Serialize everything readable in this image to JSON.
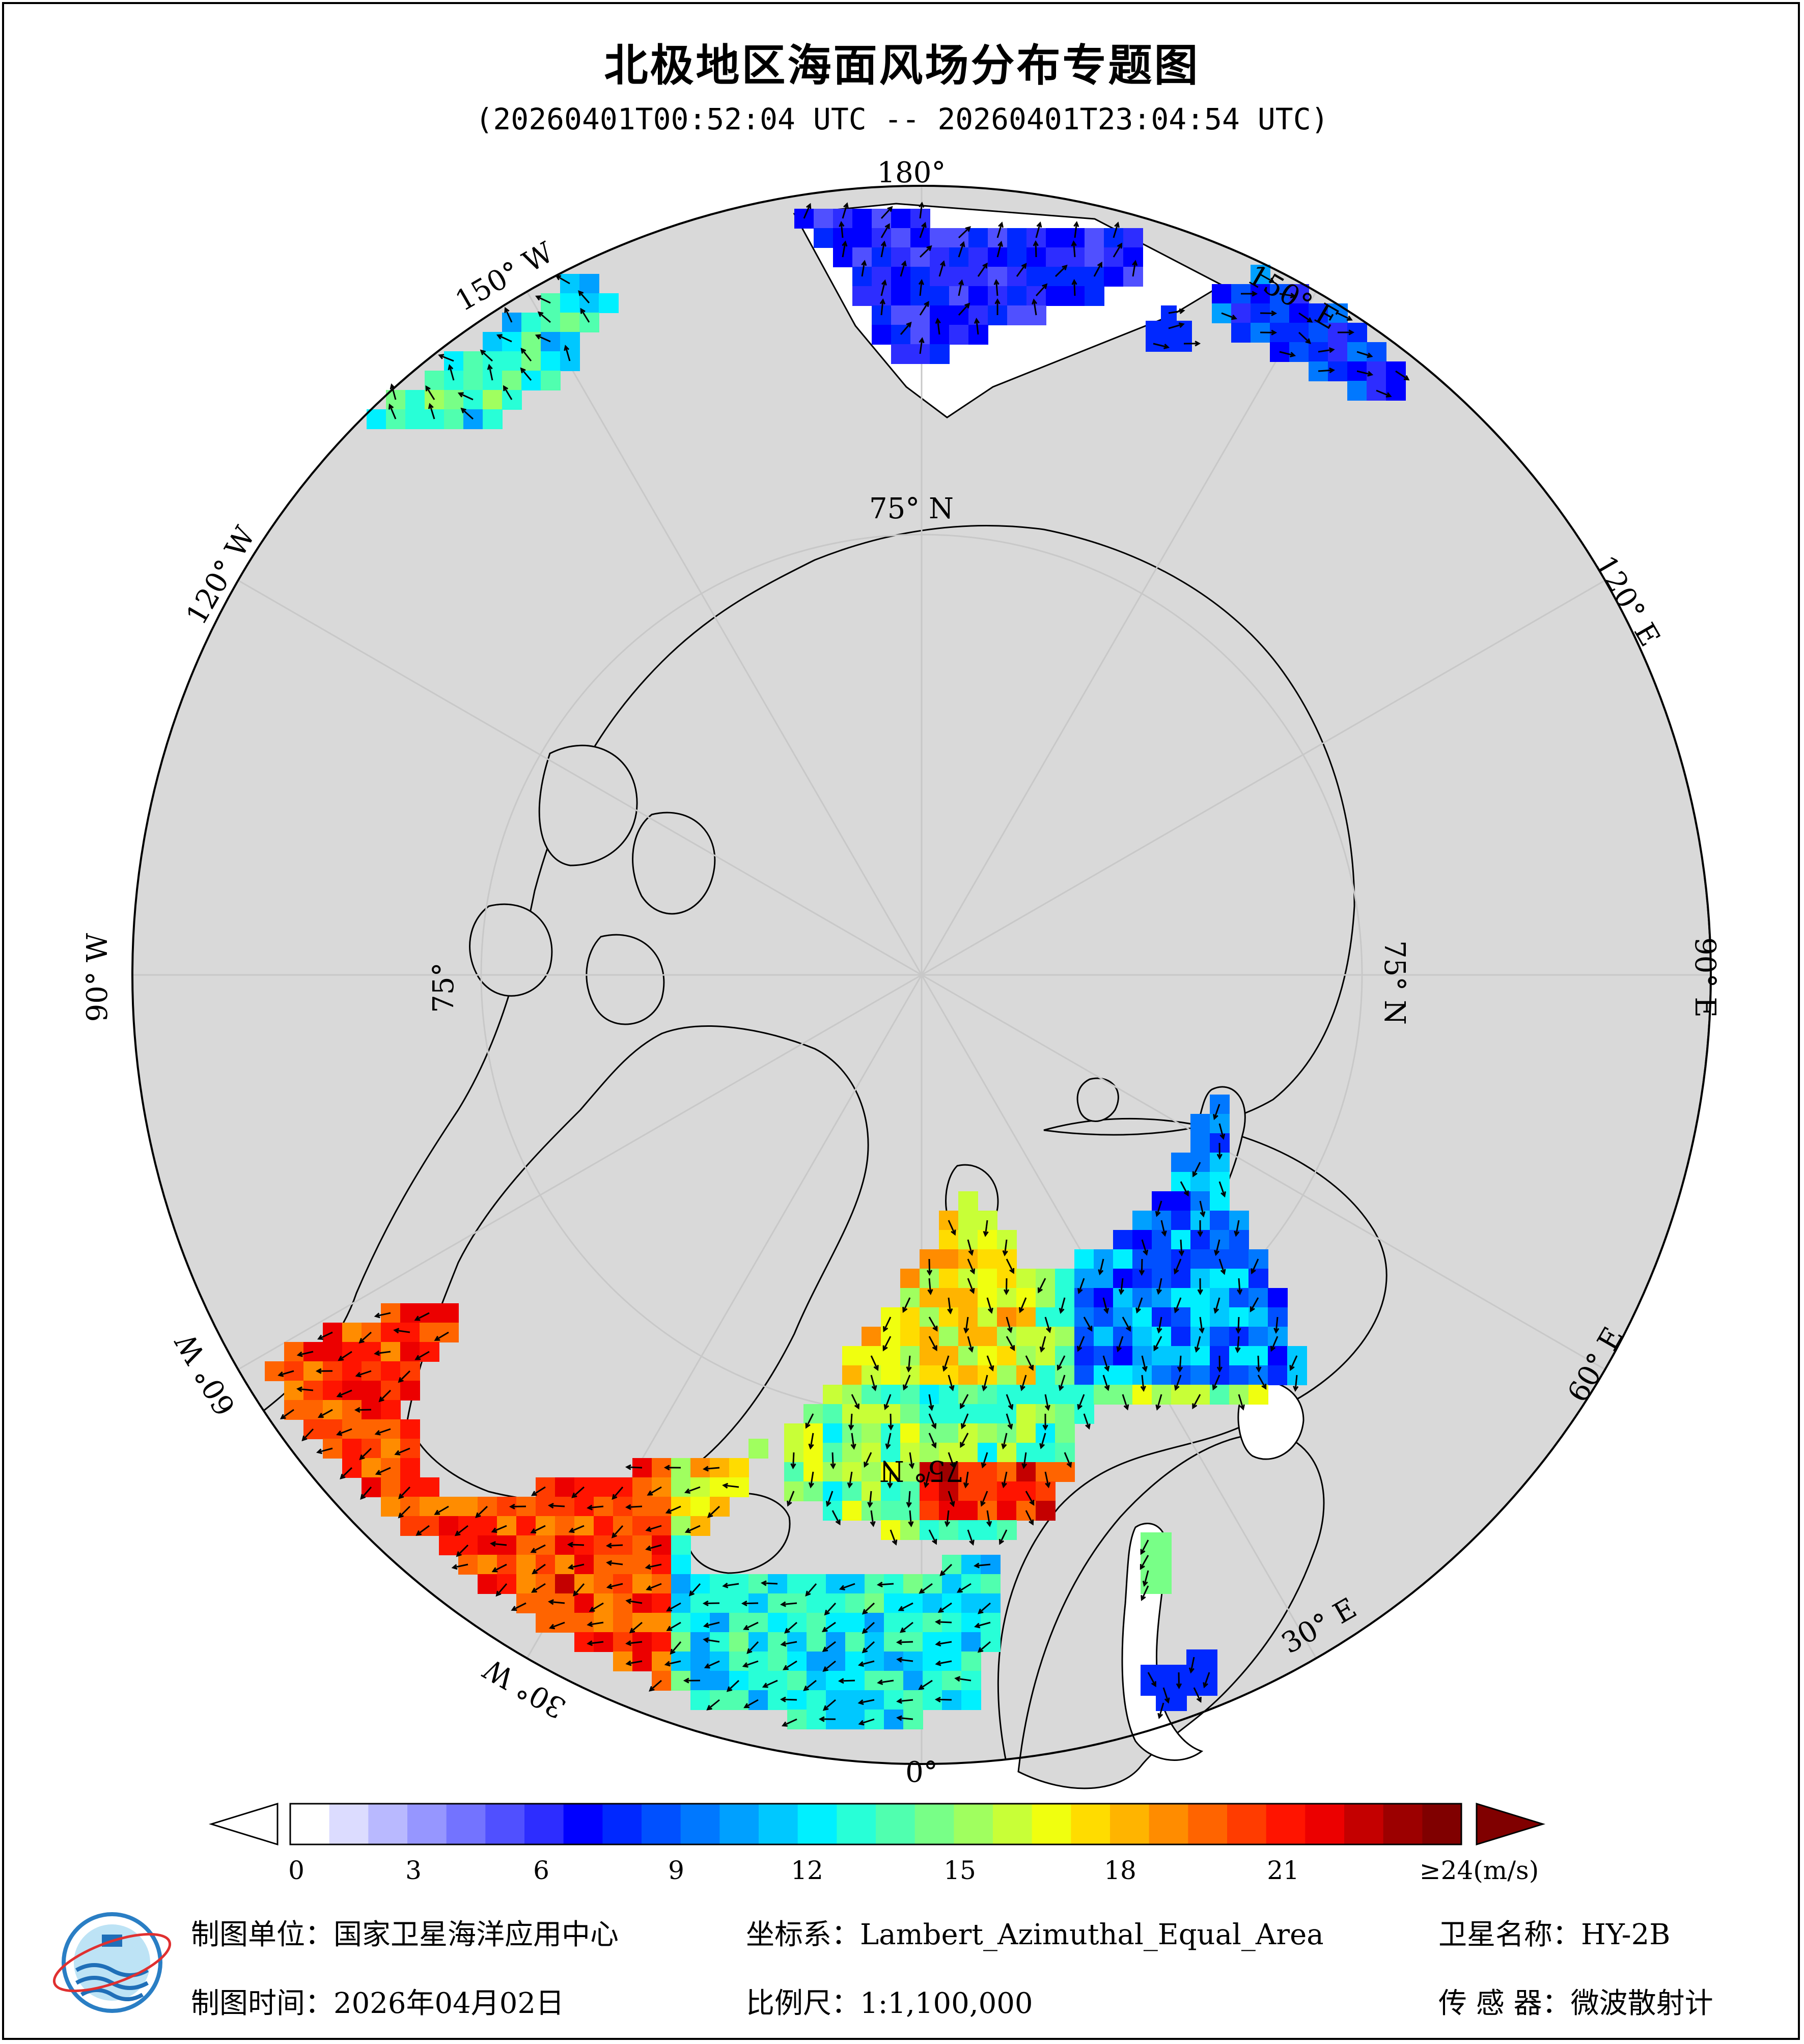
{
  "title": "北极地区海面风场分布专题图",
  "subtitle": "(20260401T00:52:04 UTC -- 20260401T23:04:54 UTC)",
  "map": {
    "projection": "Lambert_Azimuthal_Equal_Area",
    "center": "North Pole",
    "land_color": "#d9d9d9",
    "ocean_color": "#ffffff",
    "graticule_color": "#c8c8c8",
    "longitude_labels": [
      "180°",
      "150° E",
      "120° E",
      "90° E",
      "60° E",
      "30° E",
      "0°",
      "30° W",
      "60° W",
      "90° W",
      "120° W",
      "150° W"
    ],
    "latitude_labels": [
      "75° N",
      "75° N",
      "75°",
      "75° N"
    ],
    "wind_arrow_color": "#000000"
  },
  "colorbar": {
    "ticks": [
      "0",
      "3",
      "6",
      "9",
      "12",
      "15",
      "18",
      "21",
      "≥24(m/s)"
    ],
    "colors": [
      "#ffffff",
      "#dcdcff",
      "#b9b9ff",
      "#9696ff",
      "#7373ff",
      "#5050ff",
      "#2d2dff",
      "#0000ff",
      "#0028ff",
      "#0050ff",
      "#0078ff",
      "#00a0ff",
      "#00c8ff",
      "#00f0ff",
      "#28ffd7",
      "#50ffaf",
      "#78ff87",
      "#a0ff5f",
      "#c8ff37",
      "#f0ff0f",
      "#ffdc00",
      "#ffb400",
      "#ff8c00",
      "#ff6400",
      "#ff3c00",
      "#ff1400",
      "#ec0000",
      "#c40000",
      "#9c0000",
      "#800000"
    ],
    "low_arrow_color": "#ffffff",
    "high_arrow_color": "#800000"
  },
  "footer": {
    "unit": "制图单位：国家卫星海洋应用中心",
    "coordinate": "坐标系：Lambert_Azimuthal_Equal_Area",
    "satellite": "卫星名称：HY-2B",
    "date": "制图时间：2026年04月02日",
    "scale": "比例尺：1:1,100,000",
    "sensor": "传 感 器：微波散射计",
    "logo_text": "国家卫星海洋应用中心"
  }
}
